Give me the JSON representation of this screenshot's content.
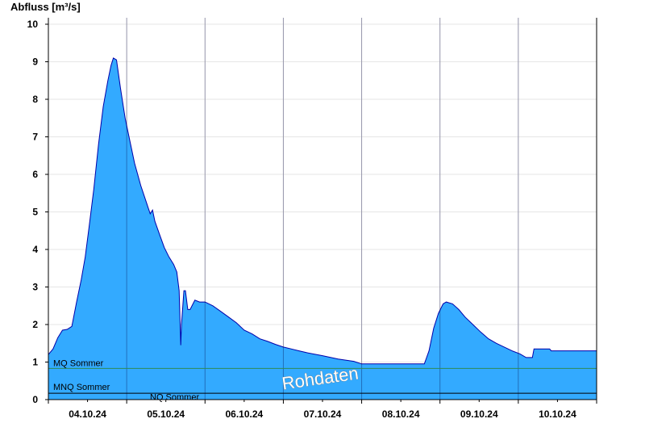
{
  "chart_data": {
    "type": "area",
    "ylabel": "Abfluss [m³/s]",
    "ylim": [
      0,
      10
    ],
    "yticks": [
      "0",
      "1",
      "2",
      "3",
      "4",
      "5",
      "6",
      "7",
      "8",
      "9",
      "10"
    ],
    "xlim_days": [
      3.5,
      10.5
    ],
    "xticks": [
      {
        "day": 4,
        "label": "04.10.24"
      },
      {
        "day": 5,
        "label": "05.10.24"
      },
      {
        "day": 6,
        "label": "06.10.24"
      },
      {
        "day": 7,
        "label": "07.10.24"
      },
      {
        "day": 8,
        "label": "08.10.24"
      },
      {
        "day": 9,
        "label": "09.10.24"
      },
      {
        "day": 10,
        "label": "10.10.24"
      }
    ],
    "grid": true,
    "series": [
      {
        "color": "#33aaff",
        "line_color": "#0000aa",
        "points": [
          [
            3.5,
            1.2
          ],
          [
            3.56,
            1.35
          ],
          [
            3.62,
            1.65
          ],
          [
            3.68,
            1.85
          ],
          [
            3.74,
            1.87
          ],
          [
            3.8,
            1.95
          ],
          [
            3.86,
            2.6
          ],
          [
            3.92,
            3.2
          ],
          [
            3.97,
            3.8
          ],
          [
            4.02,
            4.6
          ],
          [
            4.08,
            5.6
          ],
          [
            4.14,
            6.8
          ],
          [
            4.2,
            7.8
          ],
          [
            4.26,
            8.5
          ],
          [
            4.3,
            8.9
          ],
          [
            4.33,
            9.1
          ],
          [
            4.37,
            9.05
          ],
          [
            4.42,
            8.3
          ],
          [
            4.48,
            7.5
          ],
          [
            4.54,
            6.9
          ],
          [
            4.6,
            6.3
          ],
          [
            4.68,
            5.7
          ],
          [
            4.76,
            5.2
          ],
          [
            4.8,
            4.95
          ],
          [
            4.83,
            5.05
          ],
          [
            4.86,
            4.75
          ],
          [
            4.92,
            4.4
          ],
          [
            4.98,
            4.05
          ],
          [
            5.04,
            3.8
          ],
          [
            5.1,
            3.6
          ],
          [
            5.14,
            3.4
          ],
          [
            5.17,
            2.9
          ],
          [
            5.19,
            1.45
          ],
          [
            5.2,
            2.0
          ],
          [
            5.23,
            2.9
          ],
          [
            5.25,
            2.9
          ],
          [
            5.28,
            2.4
          ],
          [
            5.31,
            2.4
          ],
          [
            5.37,
            2.65
          ],
          [
            5.43,
            2.6
          ],
          [
            5.5,
            2.6
          ],
          [
            5.6,
            2.5
          ],
          [
            5.7,
            2.35
          ],
          [
            5.8,
            2.2
          ],
          [
            5.9,
            2.05
          ],
          [
            6.0,
            1.85
          ],
          [
            6.1,
            1.75
          ],
          [
            6.2,
            1.62
          ],
          [
            6.3,
            1.55
          ],
          [
            6.4,
            1.47
          ],
          [
            6.5,
            1.4
          ],
          [
            6.6,
            1.35
          ],
          [
            6.7,
            1.3
          ],
          [
            6.8,
            1.25
          ],
          [
            7.0,
            1.17
          ],
          [
            7.2,
            1.08
          ],
          [
            7.4,
            1.02
          ],
          [
            7.5,
            0.95
          ],
          [
            7.7,
            0.95
          ],
          [
            7.9,
            0.95
          ],
          [
            8.0,
            0.95
          ],
          [
            8.2,
            0.95
          ],
          [
            8.3,
            0.95
          ],
          [
            8.36,
            1.3
          ],
          [
            8.42,
            1.9
          ],
          [
            8.48,
            2.3
          ],
          [
            8.54,
            2.55
          ],
          [
            8.58,
            2.6
          ],
          [
            8.66,
            2.55
          ],
          [
            8.74,
            2.4
          ],
          [
            8.82,
            2.2
          ],
          [
            8.92,
            2.0
          ],
          [
            9.02,
            1.8
          ],
          [
            9.12,
            1.62
          ],
          [
            9.22,
            1.5
          ],
          [
            9.32,
            1.4
          ],
          [
            9.42,
            1.3
          ],
          [
            9.52,
            1.22
          ],
          [
            9.6,
            1.12
          ],
          [
            9.68,
            1.12
          ],
          [
            9.7,
            1.35
          ],
          [
            9.9,
            1.35
          ],
          [
            9.92,
            1.3
          ],
          [
            10.5,
            1.3
          ]
        ]
      }
    ],
    "reference_lines": [
      {
        "label": "MQ Sommer",
        "value": 0.83,
        "color": "#2e8b57"
      },
      {
        "label": "MNQ Sommer",
        "value": 0.17,
        "color": "#000000"
      },
      {
        "label": "NQ Sommer",
        "value": 0.16,
        "color": "#000000"
      }
    ],
    "watermark": "Rohdaten"
  }
}
